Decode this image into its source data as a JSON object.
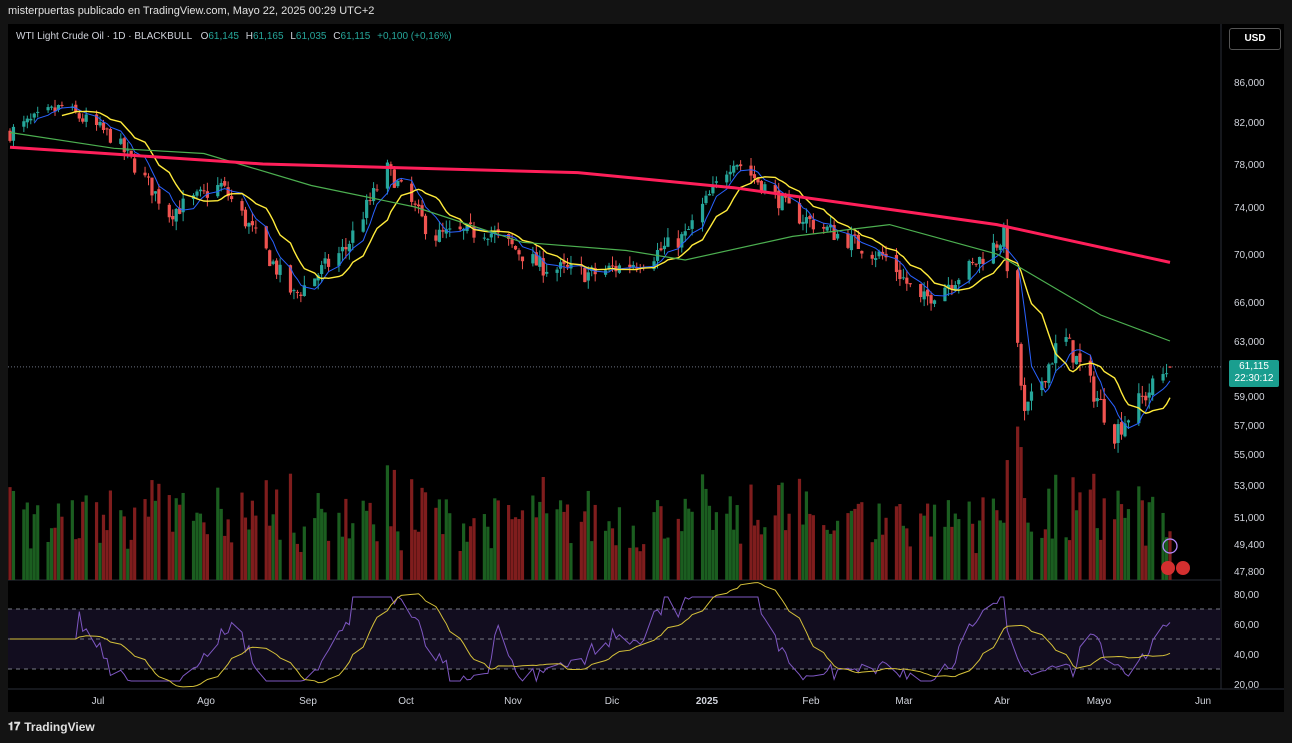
{
  "header": {
    "attribution": "misterpuertas publicado en TradingView.com, Mayo 22, 2025 00:29 UTC+2"
  },
  "legend": {
    "symbol": "WTI Light Crude Oil · 1D · BLACKBULL",
    "o_label": "O",
    "o": "61,145",
    "h_label": "H",
    "h": "61,165",
    "l_label": "L",
    "l": "61,035",
    "c_label": "C",
    "c": "61,115",
    "change": "+0,100 (+0,16%)"
  },
  "currency_button": "USD",
  "last_price": {
    "value": "61,115",
    "countdown": "22:30:12"
  },
  "footer": {
    "brand": "TradingView"
  },
  "colors": {
    "up": "#26a69a",
    "down": "#ef5350",
    "ma_fast": "#2962ff",
    "ma_yellow": "#ffeb3b",
    "ma_green": "#4caf50",
    "ma_long": "#ff1f5a",
    "rsi": "#7e57c2",
    "rsi_ma": "#d4c03a",
    "vol_up": "#1b5e20",
    "vol_down": "#7f1d1d"
  },
  "chart_data": [
    {
      "type": "candlestick",
      "y_ticks": [
        "86,000",
        "82,000",
        "78,000",
        "74,000",
        "70,000",
        "66,000",
        "63,000",
        "59,000",
        "57,000",
        "55,000",
        "53,000",
        "51,000",
        "49,400",
        "47,800"
      ],
      "x_ticks": [
        "Jul",
        "Ago",
        "Sep",
        "Oct",
        "Nov",
        "Dic",
        "2025",
        "Feb",
        "Mar",
        "Abr",
        "Mayo",
        "Jun"
      ],
      "ylim": [
        47.8,
        86.0
      ],
      "close_path": [
        {
          "x": "2024-06-20",
          "y": 81.0
        },
        {
          "x": "2024-07-05",
          "y": 83.5
        },
        {
          "x": "2024-07-20",
          "y": 80.5
        },
        {
          "x": "2024-08-05",
          "y": 73.5
        },
        {
          "x": "2024-08-20",
          "y": 76.0
        },
        {
          "x": "2024-09-10",
          "y": 66.5
        },
        {
          "x": "2024-09-25",
          "y": 70.5
        },
        {
          "x": "2024-10-07",
          "y": 77.5
        },
        {
          "x": "2024-10-20",
          "y": 71.5
        },
        {
          "x": "2024-11-05",
          "y": 72.0
        },
        {
          "x": "2024-11-20",
          "y": 69.0
        },
        {
          "x": "2024-12-05",
          "y": 68.3
        },
        {
          "x": "2024-12-20",
          "y": 69.5
        },
        {
          "x": "2025-01-01",
          "y": 71.5
        },
        {
          "x": "2025-01-15",
          "y": 78.5
        },
        {
          "x": "2025-02-01",
          "y": 73.5
        },
        {
          "x": "2025-02-15",
          "y": 71.5
        },
        {
          "x": "2025-03-01",
          "y": 69.5
        },
        {
          "x": "2025-03-10",
          "y": 66.0
        },
        {
          "x": "2025-03-25",
          "y": 69.0
        },
        {
          "x": "2025-04-03",
          "y": 71.5
        },
        {
          "x": "2025-04-09",
          "y": 57.5
        },
        {
          "x": "2025-04-20",
          "y": 63.5
        },
        {
          "x": "2025-05-05",
          "y": 56.5
        },
        {
          "x": "2025-05-21",
          "y": 61.115
        }
      ],
      "series": [
        {
          "name": "",
          "role": "ma_long",
          "values": [
            {
              "x": "2024-06-20",
              "y": 79.6
            },
            {
              "x": "2024-09-01",
              "y": 78.0
            },
            {
              "x": "2024-12-01",
              "y": 77.2
            },
            {
              "x": "2025-01-15",
              "y": 75.8
            },
            {
              "x": "2025-03-01",
              "y": 73.8
            },
            {
              "x": "2025-04-01",
              "y": 72.5
            },
            {
              "x": "2025-05-21",
              "y": 69.3
            }
          ]
        },
        {
          "name": "",
          "role": "ma_green",
          "values": [
            {
              "x": "2024-06-20",
              "y": 81.0
            },
            {
              "x": "2024-07-20",
              "y": 79.5
            },
            {
              "x": "2024-08-15",
              "y": 79.0
            },
            {
              "x": "2024-09-15",
              "y": 76.0
            },
            {
              "x": "2024-10-15",
              "y": 74.0
            },
            {
              "x": "2024-11-15",
              "y": 71.0
            },
            {
              "x": "2024-12-15",
              "y": 70.3
            },
            {
              "x": "2025-01-01",
              "y": 69.5
            },
            {
              "x": "2025-02-01",
              "y": 71.5
            },
            {
              "x": "2025-03-01",
              "y": 72.5
            },
            {
              "x": "2025-04-01",
              "y": 70.0
            },
            {
              "x": "2025-05-01",
              "y": 65.0
            },
            {
              "x": "2025-05-21",
              "y": 63.0
            }
          ]
        }
      ]
    },
    {
      "type": "line",
      "indicator": "oscillator",
      "y_ticks": [
        "80,00",
        "60,00",
        "40,00",
        "20,00"
      ],
      "ylim": [
        20,
        80
      ],
      "levels": [
        70,
        50,
        30
      ]
    }
  ]
}
